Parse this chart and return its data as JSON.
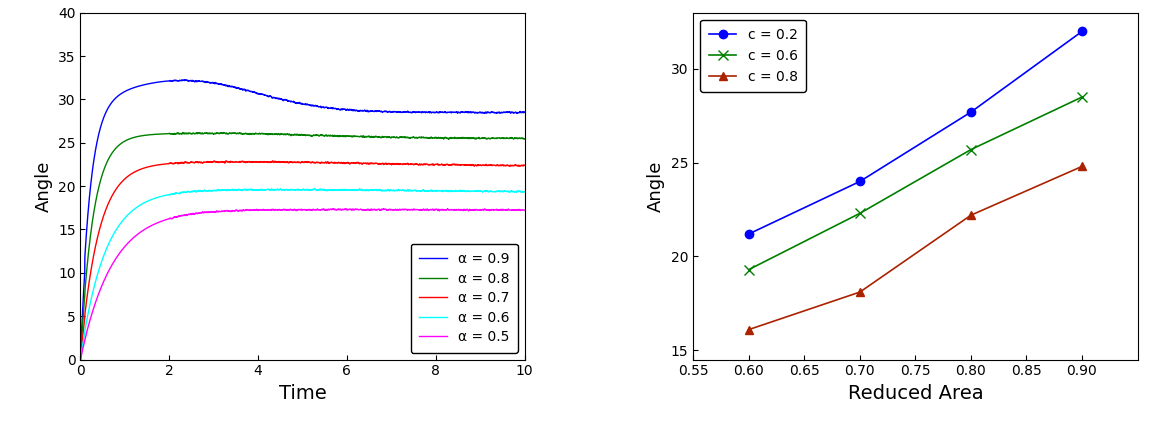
{
  "left_plot": {
    "xlabel": "Time",
    "ylabel": "Angle",
    "xlim": [
      0,
      10
    ],
    "ylim": [
      0,
      40
    ],
    "xticks": [
      0,
      2,
      4,
      6,
      8,
      10
    ],
    "yticks": [
      0,
      5,
      10,
      15,
      20,
      25,
      30,
      35,
      40
    ],
    "curves": [
      {
        "label": "α = 0.9",
        "color": "blue",
        "plateau": 28.5,
        "peak": 32.2,
        "peak_time": 2.3,
        "rise_rate": 4.5,
        "decay_rate": 0.18
      },
      {
        "label": "α = 0.8",
        "color": "green",
        "plateau": 25.5,
        "peak": 26.1,
        "peak_time": 2.8,
        "rise_rate": 3.5,
        "decay_rate": 0.08
      },
      {
        "label": "α = 0.7",
        "color": "red",
        "plateau": 22.3,
        "peak": 22.8,
        "peak_time": 3.5,
        "rise_rate": 2.5,
        "decay_rate": 0.05
      },
      {
        "label": "α = 0.6",
        "color": "cyan",
        "plateau": 19.3,
        "peak": 19.6,
        "peak_time": 4.0,
        "rise_rate": 1.8,
        "decay_rate": 0.04
      },
      {
        "label": "α = 0.5",
        "color": "magenta",
        "plateau": 17.2,
        "peak": 17.3,
        "peak_time": 4.5,
        "rise_rate": 1.4,
        "decay_rate": 0.02
      }
    ]
  },
  "right_plot": {
    "xlabel": "Reduced Area",
    "ylabel": "Angle",
    "xlim": [
      0.55,
      0.95
    ],
    "ylim": [
      14.5,
      33
    ],
    "xticks": [
      0.55,
      0.6,
      0.65,
      0.7,
      0.75,
      0.8,
      0.85,
      0.9
    ],
    "yticks": [
      15,
      20,
      25,
      30
    ],
    "series": [
      {
        "label": "c = 0.2",
        "color": "blue",
        "marker": "o",
        "markersize": 6,
        "x": [
          0.6,
          0.7,
          0.8,
          0.9
        ],
        "y": [
          21.2,
          24.0,
          27.7,
          32.0
        ]
      },
      {
        "label": "c = 0.6",
        "color": "green",
        "marker": "x",
        "markersize": 7,
        "x": [
          0.6,
          0.7,
          0.8,
          0.9
        ],
        "y": [
          19.3,
          22.3,
          25.7,
          28.5
        ]
      },
      {
        "label": "c = 0.8",
        "color": "#aa2200",
        "marker": "^",
        "markersize": 6,
        "x": [
          0.6,
          0.7,
          0.8,
          0.9
        ],
        "y": [
          16.1,
          18.1,
          22.2,
          24.8
        ]
      }
    ]
  }
}
